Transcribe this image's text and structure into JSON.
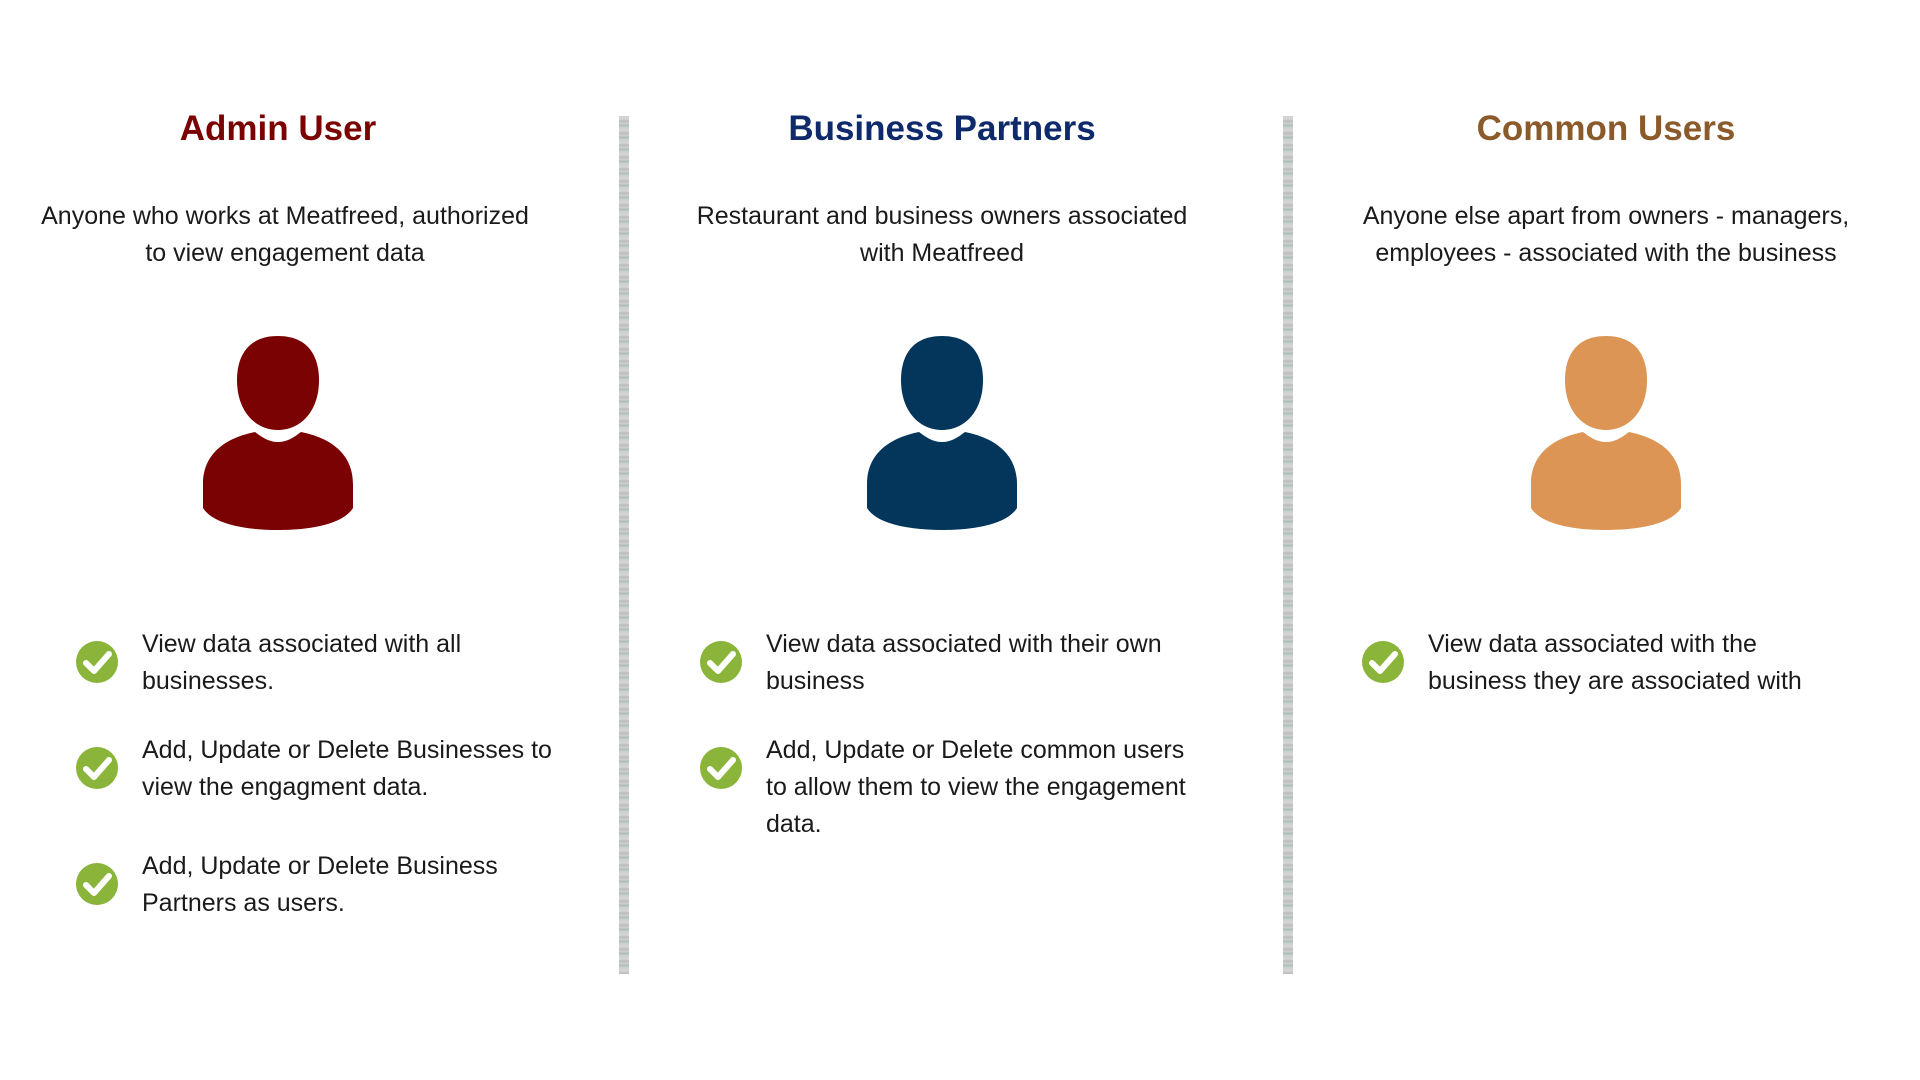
{
  "colors": {
    "admin": "#7b0202",
    "partners": "#0f2a6b",
    "common": "#8a5a2b",
    "admin_avatar": "#7b0202",
    "partners_avatar": "#03365a",
    "common_avatar": "#dc9555",
    "check": "#8ab43a"
  },
  "columns": [
    {
      "title": "Admin User",
      "description": "Anyone who works at Meatfreed, authorized to view engagement data",
      "avatar_icon": "person-icon",
      "features": [
        "View data associated with all businesses.",
        "Add, Update or Delete Businesses to view the engagment data.",
        "Add, Update or Delete Business Partners as users."
      ]
    },
    {
      "title": "Business Partners",
      "description": "Restaurant and business owners associated with Meatfreed",
      "avatar_icon": "person-icon",
      "features": [
        "View data associated with their own business",
        "Add, Update or Delete common users to allow them to view the engagement data."
      ]
    },
    {
      "title": "Common Users",
      "description": "Anyone else apart from owners - managers, employees - associated with the business",
      "avatar_icon": "person-icon",
      "features": [
        "View data associated with the business they are associated with"
      ]
    }
  ]
}
